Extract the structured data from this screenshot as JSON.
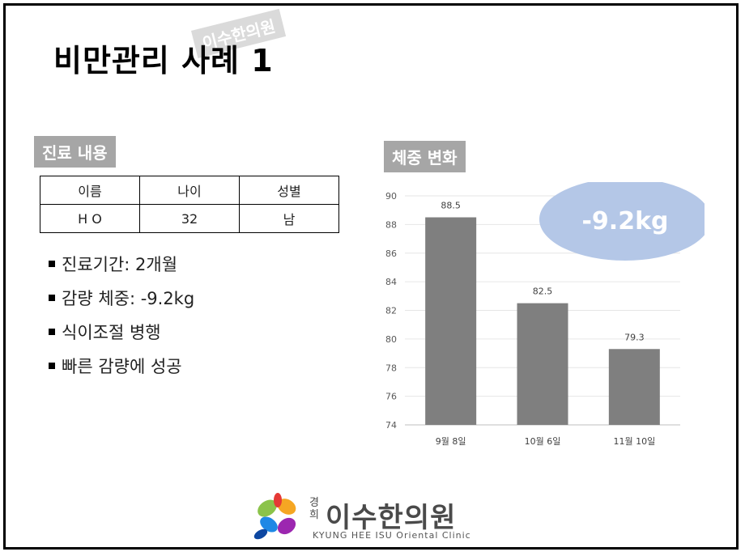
{
  "slide": {
    "title": "비만관리 사례 1",
    "watermark": "이수한의원"
  },
  "treatment": {
    "label": "진료 내용",
    "table": {
      "headers": [
        "이름",
        "나이",
        "성별"
      ],
      "row": [
        "H O",
        "32",
        "남"
      ]
    },
    "bullets": [
      "진료기간: 2개월",
      "감량 체중: -9.2kg",
      "식이조절 병행",
      "빠른 감량에 성공"
    ]
  },
  "weight": {
    "label": "체중 변화",
    "badge": "-9.2kg"
  },
  "chart_data": {
    "type": "bar",
    "categories": [
      "9월 8일",
      "10월 6일",
      "11월 10일"
    ],
    "values": [
      88.5,
      82.5,
      79.3
    ],
    "value_labels": [
      "88.5",
      "82.5",
      "79.3"
    ],
    "ylim": [
      74,
      90
    ],
    "yticks": [
      74,
      76,
      78,
      80,
      82,
      84,
      86,
      88,
      90
    ],
    "grid": true,
    "bar_color": "#7f7f7f",
    "badge_color": "#b4c7e7"
  },
  "logo": {
    "small": "경희",
    "name": "이수한의원",
    "english": "KYUNG HEE ISU Oriental Clinic"
  }
}
